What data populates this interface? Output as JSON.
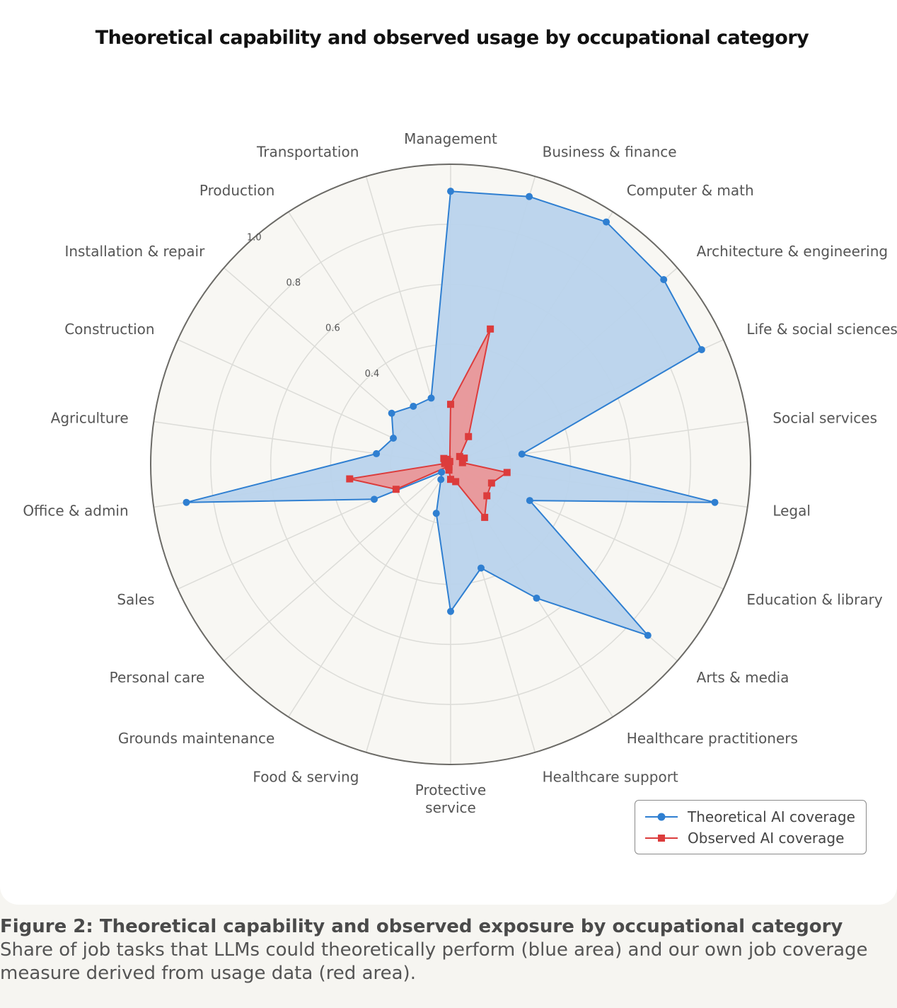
{
  "chart_data": {
    "type": "radar",
    "title": "Theoretical capability and observed usage by occupational category",
    "categories": [
      "Management",
      "Business & finance",
      "Computer & math",
      "Architecture & engineering",
      "Life & social sciences",
      "Social services",
      "Legal",
      "Education & library",
      "Arts & media",
      "Healthcare practitioners",
      "Healthcare support",
      "Protective service",
      "Food & serving",
      "Grounds maintenance",
      "Personal care",
      "Sales",
      "Office & admin",
      "Agriculture",
      "Construction",
      "Installation & repair",
      "Production",
      "Transportation"
    ],
    "rlim": [
      0,
      1.0
    ],
    "r_ticks": [
      "0.4",
      "0.6",
      "0.8",
      "1.0"
    ],
    "r_tick_values": [
      0.4,
      0.6,
      0.8,
      1.0
    ],
    "series": [
      {
        "name": "Theoretical AI coverage",
        "color": "#2f7fd1",
        "fill": "#b9d3ec",
        "marker": "circle",
        "values": [
          0.91,
          0.93,
          0.96,
          0.94,
          0.92,
          0.24,
          0.89,
          0.29,
          0.87,
          0.53,
          0.36,
          0.49,
          0.17,
          0.06,
          0.04,
          0.28,
          0.89,
          0.25,
          0.21,
          0.26,
          0.23,
          0.23
        ]
      },
      {
        "name": "Observed AI coverage",
        "color": "#dc3c3c",
        "fill": "#ec9494",
        "marker": "square",
        "values": [
          0.2,
          0.47,
          0.11,
          0.04,
          0.05,
          0.04,
          0.19,
          0.15,
          0.16,
          0.21,
          0.06,
          0.05,
          0.02,
          0.01,
          0.01,
          0.2,
          0.34,
          0.02,
          0.01,
          0.03,
          0.02,
          0.01
        ]
      }
    ],
    "legend": "bottom-right",
    "grid": true
  },
  "caption": {
    "title": "Figure 2: Theoretical capability and observed exposure by occupational category",
    "text": "Share of job tasks that LLMs could theoretically perform (blue area) and our own job coverage measure derived from usage data (red area)."
  }
}
